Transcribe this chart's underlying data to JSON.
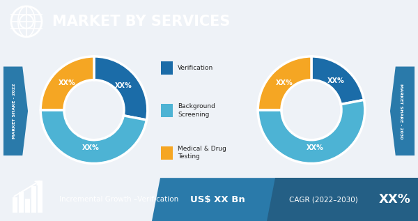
{
  "title": "MARKET BY SERVICES",
  "header_bg": "#1d4362",
  "header_text_color": "#ffffff",
  "pie1_label": "MARKET SHARE - 2022",
  "pie2_label": "MARKET SHARE - 2030",
  "slices1": [
    {
      "label": "Verification",
      "color": "#1b6ca8",
      "value": 28
    },
    {
      "label": "Background Screening",
      "color": "#4db3d4",
      "value": 47
    },
    {
      "label": "Medical & Drug Testing",
      "color": "#f5a623",
      "value": 25
    }
  ],
  "slices2": [
    {
      "label": "Verification",
      "color": "#1b6ca8",
      "value": 22
    },
    {
      "label": "Background Screening",
      "color": "#4db3d4",
      "value": 53
    },
    {
      "label": "Medical & Drug Testing",
      "color": "#f5a623",
      "value": 25
    }
  ],
  "slice_label": "XX%",
  "legend_labels": [
    "Verification",
    "Background\nScreening",
    "Medical & Drug\nTesting"
  ],
  "legend_colors": [
    "#1b6ca8",
    "#4db3d4",
    "#f5a623"
  ],
  "footer_bg_dark": "#1d4362",
  "footer_bg_mid": "#2a7aaa",
  "footer_text_color": "#ffffff",
  "footer_left": "Incremental Growth –Verification",
  "footer_mid": "US$ XX Bn",
  "footer_right_prefix": "CAGR (2022–2030)",
  "footer_right_value": "XX%",
  "arrow_bg": "#2a7aaa",
  "bg_color": "#eef2f7",
  "donut_linewidth": 2.5
}
